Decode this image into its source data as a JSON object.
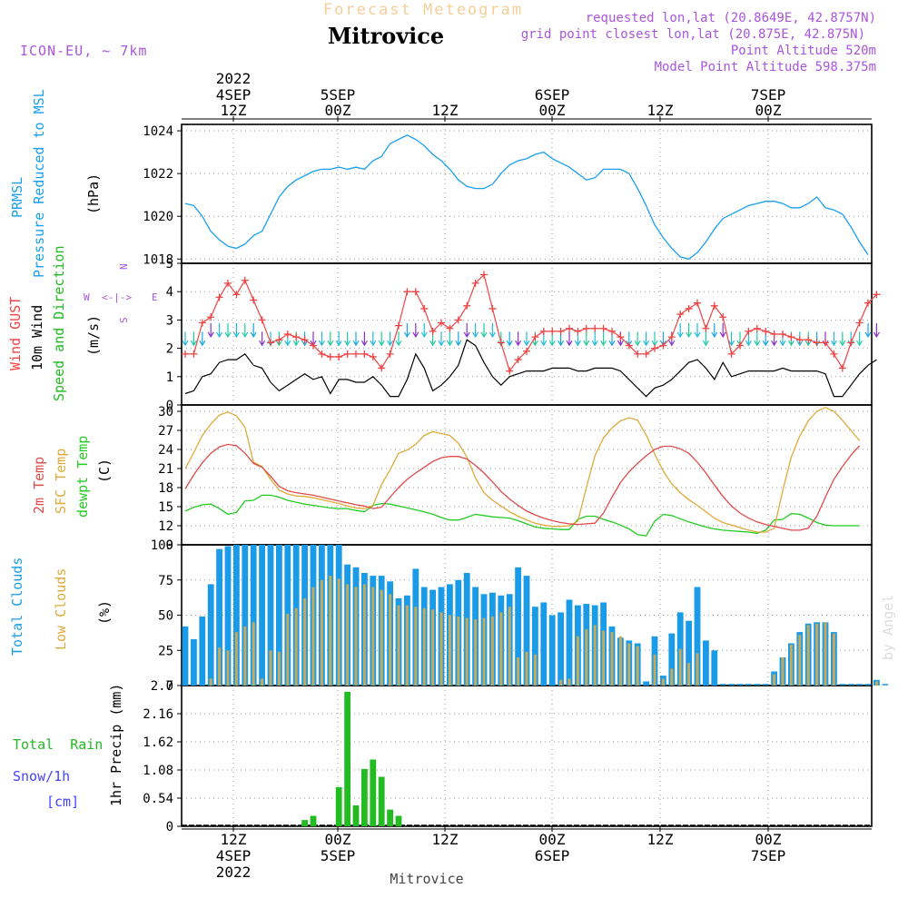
{
  "header": {
    "subtitle": "Forecast Meteogram",
    "location": "Mitrovice",
    "model": "ICON-EU, ~ 7km",
    "requested": "requested lon,lat (20.8649E, 42.8757N)",
    "grid_point": "grid point closest lon,lat (20.875E, 42.875N)",
    "point_altitude": "Point Altitude 520m",
    "model_altitude": "Model Point Altitude 598.375m"
  },
  "watermark": "by Angel",
  "footer_label": "Mitrovice",
  "colors": {
    "pressure": "#199ff0",
    "gust": "#ee4444",
    "wind": "#000000",
    "dir": "#22bb22",
    "t2m": "#e04a4a",
    "sfc": "#e0a93a",
    "dew": "#22cc22",
    "total_cloud": "#1a9be8",
    "low_cloud": "#c4aa5a",
    "rain": "#22bb22",
    "snow": "#4444ff",
    "purple": "#aa55dd"
  },
  "time_axis_top": [
    {
      "id": "t0",
      "time": "12Z",
      "day": "4SEP",
      "year": "2022"
    },
    {
      "id": "t1",
      "time": "00Z",
      "day": "5SEP",
      "year": ""
    },
    {
      "id": "t2",
      "time": "12Z",
      "day": "",
      "year": ""
    },
    {
      "id": "t3",
      "time": "00Z",
      "day": "6SEP",
      "year": ""
    },
    {
      "id": "t4",
      "time": "12Z",
      "day": "",
      "year": ""
    },
    {
      "id": "t5",
      "time": "00Z",
      "day": "7SEP",
      "year": ""
    }
  ],
  "time_axis_bottom": [
    {
      "id": "b0",
      "time": "12Z",
      "day": "4SEP",
      "year": "2022"
    },
    {
      "id": "b1",
      "time": "00Z",
      "day": "5SEP",
      "year": ""
    },
    {
      "id": "b2",
      "time": "12Z",
      "day": "",
      "year": ""
    },
    {
      "id": "b3",
      "time": "00Z",
      "day": "6SEP",
      "year": ""
    },
    {
      "id": "b4",
      "time": "12Z",
      "day": "",
      "year": ""
    },
    {
      "id": "b5",
      "time": "00Z",
      "day": "7SEP",
      "year": ""
    }
  ],
  "panel_labels": {
    "pressure": [
      "PRMSL",
      "Pressure Reduced to MSL",
      "(hPa)"
    ],
    "wind": [
      "Wind GUST",
      "10m Wind",
      "Speed and Direction",
      "(m/s)"
    ],
    "compass": {
      "n": "N",
      "s": "S",
      "w": "W",
      "e": "E",
      "arrow": "<-|->"
    },
    "temp": [
      "2m Temp",
      "SFC Temp",
      "dewpt Temp",
      "(C)"
    ],
    "cloud": [
      "Total Clouds",
      "Low Clouds",
      "(%)"
    ],
    "precip": [
      "Total  Rain",
      "Snow/1h",
      "[cm]",
      "1hr Precip (mm)"
    ]
  },
  "chart_data": [
    {
      "id": "pressure",
      "type": "line",
      "title": "PRMSL Pressure Reduced to MSL",
      "ylabel": "(hPa)",
      "ylim": [
        1017.8,
        1024.3
      ],
      "yticks": [
        1018,
        1020,
        1022,
        1024
      ],
      "series": [
        {
          "name": "PRMSL",
          "values": [
            1020.6,
            1020.5,
            1020.0,
            1019.3,
            1018.9,
            1018.6,
            1018.5,
            1018.7,
            1019.1,
            1019.3,
            1020.1,
            1020.9,
            1021.4,
            1021.7,
            1021.9,
            1022.1,
            1022.2,
            1022.2,
            1022.3,
            1022.2,
            1022.3,
            1022.2,
            1022.6,
            1022.8,
            1023.4,
            1023.6,
            1023.8,
            1023.6,
            1023.3,
            1022.9,
            1022.6,
            1022.2,
            1021.7,
            1021.4,
            1021.3,
            1021.3,
            1021.5,
            1022.0,
            1022.4,
            1022.6,
            1022.7,
            1022.9,
            1023.0,
            1022.7,
            1022.5,
            1022.3,
            1022.0,
            1021.7,
            1021.8,
            1022.2,
            1022.2,
            1022.2,
            1022.0,
            1021.3,
            1020.5,
            1019.6,
            1019.0,
            1018.5,
            1018.1,
            1018.0,
            1018.3,
            1018.8,
            1019.4,
            1019.9,
            1020.1,
            1020.3,
            1020.5,
            1020.6,
            1020.7,
            1020.7,
            1020.6,
            1020.4,
            1020.4,
            1020.6,
            1020.9,
            1020.4,
            1020.3,
            1020.1,
            1019.5,
            1018.8,
            1018.2
          ]
        }
      ]
    },
    {
      "id": "wind",
      "type": "line",
      "title": "Wind GUST / 10m Wind Speed and Direction",
      "ylabel": "(m/s)",
      "ylim": [
        0,
        5
      ],
      "yticks": [
        0,
        1,
        2,
        3,
        4,
        5
      ],
      "series": [
        {
          "name": "Wind GUST",
          "values": [
            1.8,
            1.8,
            2.9,
            3.1,
            3.8,
            4.3,
            3.9,
            4.4,
            3.7,
            3.0,
            2.2,
            2.3,
            2.5,
            2.4,
            2.3,
            2.1,
            1.8,
            1.7,
            1.7,
            1.8,
            1.8,
            1.8,
            1.7,
            1.3,
            1.8,
            2.8,
            4.0,
            4.0,
            3.4,
            2.6,
            2.9,
            2.7,
            3.0,
            3.5,
            4.3,
            4.6,
            3.4,
            2.2,
            1.2,
            1.6,
            1.9,
            2.4,
            2.6,
            2.6,
            2.6,
            2.7,
            2.6,
            2.7,
            2.7,
            2.7,
            2.6,
            2.4,
            2.1,
            1.8,
            1.8,
            2.0,
            2.1,
            2.4,
            3.2,
            3.4,
            3.6,
            2.7,
            3.5,
            3.1,
            1.8,
            2.1,
            2.6,
            2.7,
            2.6,
            2.5,
            2.5,
            2.4,
            2.3,
            2.3,
            2.2,
            2.2,
            1.8,
            1.3,
            2.2,
            2.9,
            3.6,
            3.9
          ]
        },
        {
          "name": "10m Wind",
          "values": [
            0.4,
            0.5,
            1.0,
            1.1,
            1.5,
            1.6,
            1.6,
            1.8,
            1.4,
            1.3,
            0.8,
            0.5,
            0.7,
            0.9,
            1.1,
            0.9,
            1.0,
            0.4,
            0.9,
            0.9,
            0.8,
            0.8,
            1.0,
            0.7,
            0.3,
            0.3,
            0.9,
            1.8,
            1.3,
            0.5,
            0.7,
            1.0,
            1.4,
            2.3,
            2.1,
            1.5,
            1.0,
            0.7,
            1.0,
            1.1,
            1.2,
            1.2,
            1.2,
            1.3,
            1.3,
            1.3,
            1.2,
            1.2,
            1.3,
            1.3,
            1.3,
            1.2,
            0.9,
            0.6,
            0.3,
            0.6,
            0.7,
            0.9,
            1.2,
            1.5,
            1.6,
            1.3,
            0.9,
            1.5,
            1.0,
            1.1,
            1.2,
            1.2,
            1.2,
            1.2,
            1.3,
            1.2,
            1.2,
            1.2,
            1.2,
            1.1,
            0.3,
            0.3,
            0.7,
            1.1,
            1.4,
            1.6
          ]
        }
      ]
    },
    {
      "id": "temp",
      "type": "line",
      "title": "2m Temp / SFC Temp / dewpt Temp",
      "ylabel": "(C)",
      "ylim": [
        9,
        31
      ],
      "yticks": [
        9,
        12,
        15,
        18,
        21,
        24,
        27,
        30
      ],
      "series": [
        {
          "name": "2m Temp",
          "values": [
            17.8,
            20.0,
            21.9,
            23.4,
            24.4,
            24.8,
            24.6,
            23.4,
            21.8,
            21.2,
            19.8,
            18.2,
            17.5,
            17.2,
            17.0,
            16.8,
            16.5,
            16.2,
            15.9,
            15.6,
            15.3,
            15.1,
            14.7,
            14.9,
            16.5,
            18.0,
            19.3,
            20.3,
            21.2,
            22.1,
            22.7,
            22.9,
            22.9,
            22.5,
            21.5,
            20.3,
            18.9,
            17.4,
            16.2,
            15.2,
            14.3,
            13.7,
            13.2,
            12.8,
            12.5,
            12.3,
            12.2,
            12.3,
            12.4,
            14.0,
            16.5,
            18.8,
            20.5,
            21.8,
            23.0,
            24.0,
            24.5,
            24.5,
            24.1,
            23.4,
            22.0,
            20.3,
            18.4,
            16.6,
            15.1,
            14.0,
            13.2,
            12.6,
            12.2,
            11.9,
            11.6,
            11.3,
            11.3,
            11.6,
            13.5,
            16.5,
            19.3,
            21.3,
            23.1,
            24.6
          ]
        },
        {
          "name": "SFC Temp",
          "values": [
            21.0,
            23.5,
            26.2,
            28.0,
            29.4,
            29.9,
            29.3,
            27.5,
            22.0,
            21.3,
            19.3,
            17.6,
            17.0,
            16.7,
            16.6,
            16.4,
            16.1,
            15.8,
            15.5,
            15.1,
            14.8,
            14.7,
            15.2,
            18.5,
            20.8,
            23.4,
            23.9,
            24.8,
            26.2,
            26.8,
            26.5,
            26.2,
            25.0,
            22.8,
            19.5,
            17.2,
            16.0,
            15.1,
            14.2,
            13.5,
            12.9,
            12.4,
            12.1,
            11.9,
            11.9,
            12.0,
            12.7,
            18.0,
            23.0,
            25.8,
            27.4,
            28.5,
            29.0,
            28.6,
            26.3,
            23.3,
            20.6,
            18.6,
            17.2,
            16.1,
            15.2,
            14.2,
            13.2,
            12.5,
            12.1,
            11.7,
            11.3,
            11.0,
            11.0,
            11.6,
            17.5,
            22.8,
            26.1,
            28.5,
            30.0,
            30.6,
            30.0,
            28.6,
            27.0,
            25.4
          ]
        },
        {
          "name": "dewpt Temp",
          "values": [
            14.3,
            14.9,
            15.3,
            15.4,
            14.7,
            13.8,
            14.1,
            15.9,
            16.0,
            16.8,
            16.8,
            16.5,
            16.0,
            15.7,
            15.4,
            15.2,
            15.0,
            14.8,
            14.7,
            14.7,
            14.4,
            14.2,
            15.2,
            15.5,
            15.4,
            15.1,
            14.8,
            14.5,
            14.2,
            13.8,
            13.3,
            12.9,
            12.9,
            13.3,
            13.8,
            13.6,
            13.4,
            13.3,
            13.2,
            12.8,
            12.3,
            11.8,
            11.6,
            11.5,
            11.4,
            11.4,
            13.0,
            13.5,
            13.5,
            13.0,
            12.6,
            12.1,
            11.5,
            10.6,
            10.4,
            12.7,
            13.8,
            13.6,
            13.1,
            12.6,
            12.2,
            11.8,
            11.5,
            11.3,
            11.2,
            11.1,
            11.0,
            10.8,
            11.3,
            12.9,
            13.0,
            13.9,
            13.8,
            13.2,
            12.5,
            12.1,
            12.0,
            12.0,
            12.0,
            12.0
          ]
        }
      ]
    },
    {
      "id": "cloud",
      "type": "bar",
      "title": "Total Clouds / Low Clouds",
      "ylabel": "(%)",
      "ylim": [
        0,
        100
      ],
      "yticks": [
        0,
        25,
        50,
        75,
        100
      ],
      "series": [
        {
          "name": "Total Clouds",
          "values": [
            42,
            33,
            49,
            72,
            97,
            99,
            100,
            100,
            100,
            100,
            100,
            100,
            100,
            100,
            100,
            100,
            100,
            100,
            100,
            86,
            84,
            80,
            78,
            78,
            74,
            62,
            64,
            83,
            70,
            68,
            70,
            72,
            75,
            80,
            70,
            65,
            66,
            64,
            65,
            84,
            78,
            56,
            59,
            50,
            52,
            61,
            57,
            58,
            57,
            59,
            42,
            34,
            32,
            30,
            3,
            35,
            7,
            37,
            52,
            46,
            70,
            32,
            25,
            0,
            0,
            0,
            0,
            0,
            0,
            10,
            20,
            30,
            38,
            44,
            45,
            45,
            38,
            0,
            0,
            0,
            0,
            4,
            0
          ]
        },
        {
          "name": "Low Clouds",
          "values": [
            0,
            0,
            0,
            5,
            27,
            25,
            38,
            42,
            45,
            5,
            25,
            24,
            51,
            55,
            62,
            70,
            75,
            78,
            76,
            72,
            70,
            72,
            70,
            68,
            65,
            57,
            57,
            56,
            55,
            54,
            52,
            50,
            49,
            48,
            47,
            48,
            49,
            52,
            56,
            20,
            24,
            22,
            0,
            0,
            4,
            5,
            35,
            40,
            43,
            39,
            38,
            35,
            30,
            28,
            0,
            22,
            5,
            12,
            26,
            16,
            23,
            0,
            0,
            0,
            0,
            0,
            0,
            0,
            0,
            8,
            20,
            29,
            36,
            43,
            44,
            45,
            37,
            0,
            0,
            0,
            0,
            3,
            0
          ]
        }
      ]
    },
    {
      "id": "precip",
      "type": "bar",
      "title": "1hr Precip (mm)",
      "ylabel": "1hr Precip (mm)",
      "ylim": [
        0,
        2.7
      ],
      "yticks": [
        0,
        0.54,
        1.08,
        1.62,
        2.16,
        2.7
      ],
      "series": [
        {
          "name": "Total Rain",
          "values": [
            0,
            0,
            0,
            0,
            0,
            0,
            0,
            0,
            0,
            0,
            0,
            0,
            0,
            0,
            0.12,
            0.2,
            0,
            0,
            0.75,
            2.58,
            0.4,
            1.1,
            1.28,
            0.95,
            0.32,
            0.2,
            0,
            0,
            0,
            0,
            0,
            0,
            0,
            0,
            0,
            0,
            0,
            0,
            0,
            0,
            0,
            0,
            0,
            0,
            0,
            0,
            0,
            0,
            0,
            0,
            0,
            0,
            0,
            0,
            0,
            0,
            0,
            0,
            0,
            0,
            0,
            0,
            0,
            0,
            0,
            0,
            0,
            0,
            0,
            0,
            0,
            0,
            0,
            0,
            0,
            0,
            0,
            0,
            0,
            0,
            0
          ]
        }
      ]
    }
  ]
}
